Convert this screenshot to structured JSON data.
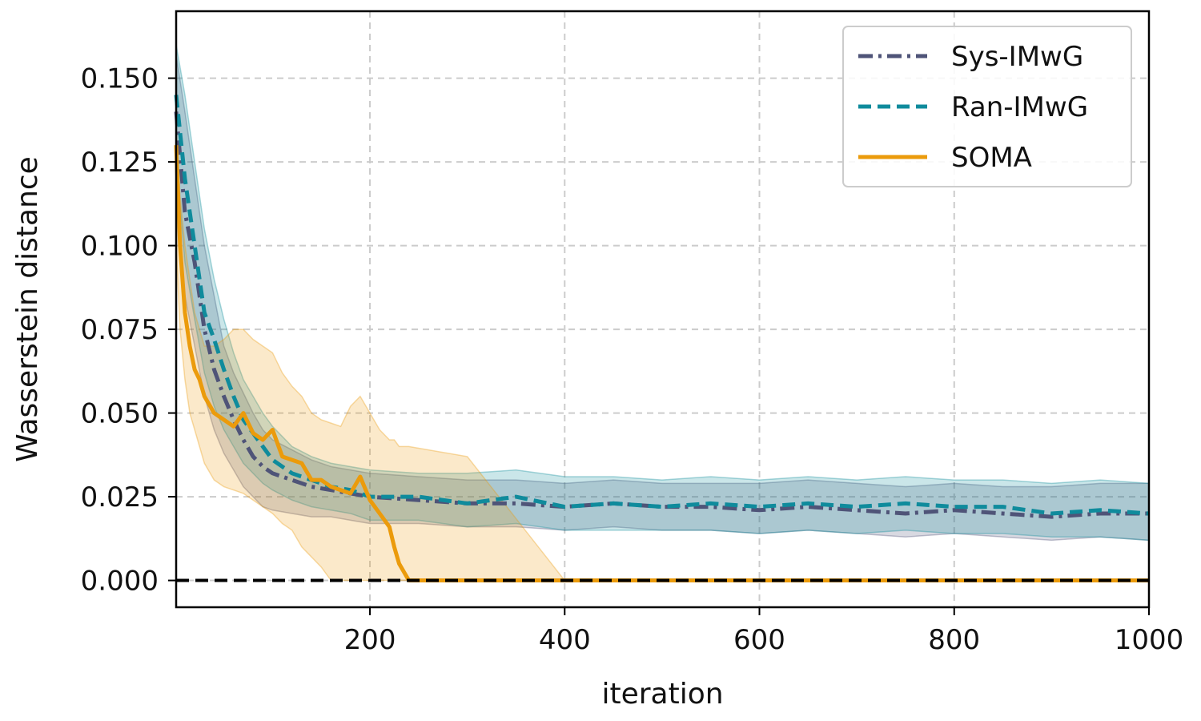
{
  "chart_data": {
    "type": "line",
    "title": "",
    "xlabel": "iteration",
    "ylabel": "Wasserstein distance",
    "xlim": [
      1,
      1000
    ],
    "ylim": [
      -0.008,
      0.17
    ],
    "xticks": [
      200,
      400,
      600,
      800,
      1000
    ],
    "xtick_labels": [
      "200",
      "400",
      "600",
      "800",
      "1000"
    ],
    "yticks": [
      0.0,
      0.025,
      0.05,
      0.075,
      0.1,
      0.125,
      0.15
    ],
    "ytick_labels": [
      "0.000",
      "0.025",
      "0.050",
      "0.075",
      "0.100",
      "0.125",
      "0.150"
    ],
    "grid": true,
    "legend_position": "top-right",
    "reference_line": {
      "y": 0.0,
      "color": "#000000",
      "style": "dashed"
    },
    "series": [
      {
        "name": "Sys-IMwG",
        "color": "#4f5478",
        "style": "dashdot",
        "x": [
          1,
          10,
          20,
          30,
          40,
          50,
          60,
          70,
          80,
          90,
          100,
          120,
          140,
          160,
          180,
          200,
          250,
          300,
          350,
          400,
          450,
          500,
          550,
          600,
          650,
          700,
          750,
          800,
          850,
          900,
          950,
          1000
        ],
        "mean": [
          0.14,
          0.11,
          0.095,
          0.075,
          0.063,
          0.055,
          0.048,
          0.042,
          0.037,
          0.034,
          0.032,
          0.03,
          0.028,
          0.027,
          0.026,
          0.025,
          0.024,
          0.023,
          0.023,
          0.022,
          0.023,
          0.022,
          0.022,
          0.021,
          0.022,
          0.021,
          0.02,
          0.021,
          0.02,
          0.019,
          0.02,
          0.02
        ],
        "upper": [
          0.157,
          0.14,
          0.12,
          0.1,
          0.085,
          0.07,
          0.062,
          0.056,
          0.05,
          0.045,
          0.042,
          0.039,
          0.036,
          0.034,
          0.033,
          0.032,
          0.031,
          0.03,
          0.03,
          0.029,
          0.03,
          0.029,
          0.029,
          0.029,
          0.03,
          0.029,
          0.028,
          0.029,
          0.028,
          0.028,
          0.029,
          0.029
        ],
        "lower": [
          0.12,
          0.085,
          0.07,
          0.055,
          0.045,
          0.038,
          0.033,
          0.028,
          0.025,
          0.022,
          0.021,
          0.02,
          0.019,
          0.019,
          0.018,
          0.017,
          0.017,
          0.016,
          0.016,
          0.015,
          0.016,
          0.015,
          0.015,
          0.014,
          0.015,
          0.014,
          0.013,
          0.014,
          0.013,
          0.012,
          0.013,
          0.012
        ]
      },
      {
        "name": "Ran-IMwG",
        "color": "#0f8b9c",
        "style": "dashed",
        "x": [
          1,
          10,
          20,
          30,
          40,
          50,
          60,
          70,
          80,
          90,
          100,
          120,
          140,
          160,
          180,
          200,
          250,
          300,
          350,
          400,
          450,
          500,
          550,
          600,
          650,
          700,
          750,
          800,
          850,
          900,
          950,
          1000
        ],
        "mean": [
          0.145,
          0.12,
          0.1,
          0.08,
          0.072,
          0.063,
          0.055,
          0.048,
          0.044,
          0.04,
          0.036,
          0.032,
          0.03,
          0.028,
          0.027,
          0.025,
          0.025,
          0.023,
          0.025,
          0.022,
          0.023,
          0.022,
          0.023,
          0.022,
          0.023,
          0.022,
          0.023,
          0.022,
          0.022,
          0.02,
          0.021,
          0.02
        ],
        "upper": [
          0.16,
          0.145,
          0.125,
          0.105,
          0.09,
          0.078,
          0.068,
          0.06,
          0.055,
          0.05,
          0.046,
          0.04,
          0.037,
          0.035,
          0.034,
          0.033,
          0.032,
          0.032,
          0.033,
          0.031,
          0.031,
          0.03,
          0.031,
          0.03,
          0.031,
          0.03,
          0.031,
          0.03,
          0.03,
          0.029,
          0.03,
          0.029
        ],
        "lower": [
          0.125,
          0.095,
          0.078,
          0.062,
          0.052,
          0.045,
          0.04,
          0.035,
          0.032,
          0.029,
          0.027,
          0.024,
          0.022,
          0.021,
          0.02,
          0.018,
          0.018,
          0.016,
          0.017,
          0.015,
          0.015,
          0.015,
          0.015,
          0.014,
          0.015,
          0.014,
          0.015,
          0.014,
          0.014,
          0.013,
          0.013,
          0.012
        ]
      },
      {
        "name": "SOMA",
        "color": "#eb9b0c",
        "style": "solid",
        "x": [
          1,
          5,
          10,
          15,
          20,
          25,
          30,
          40,
          50,
          60,
          70,
          80,
          90,
          100,
          110,
          120,
          130,
          140,
          150,
          160,
          170,
          180,
          190,
          200,
          210,
          220,
          225,
          230,
          240,
          300,
          400,
          500,
          600,
          700,
          800,
          900,
          1000
        ],
        "mean": [
          0.13,
          0.1,
          0.08,
          0.07,
          0.063,
          0.06,
          0.055,
          0.05,
          0.048,
          0.046,
          0.05,
          0.044,
          0.042,
          0.045,
          0.037,
          0.036,
          0.035,
          0.03,
          0.03,
          0.028,
          0.027,
          0.026,
          0.031,
          0.024,
          0.02,
          0.016,
          0.01,
          0.005,
          0.0,
          0.0,
          0.0,
          0.0,
          0.0,
          0.0,
          0.0,
          0.0,
          0.0
        ],
        "upper": [
          0.135,
          0.115,
          0.1,
          0.09,
          0.08,
          0.075,
          0.07,
          0.07,
          0.072,
          0.075,
          0.075,
          0.072,
          0.07,
          0.068,
          0.062,
          0.058,
          0.055,
          0.05,
          0.048,
          0.047,
          0.046,
          0.052,
          0.055,
          0.05,
          0.045,
          0.042,
          0.042,
          0.04,
          0.04,
          0.037,
          0.0,
          0.0,
          0.0,
          0.0,
          0.0,
          0.0,
          0.0
        ],
        "lower": [
          0.1,
          0.075,
          0.06,
          0.05,
          0.045,
          0.04,
          0.035,
          0.03,
          0.028,
          0.027,
          0.026,
          0.024,
          0.022,
          0.02,
          0.017,
          0.015,
          0.01,
          0.007,
          0.004,
          0.0,
          0.0,
          0.0,
          0.0,
          0.0,
          0.0,
          0.0,
          0.0,
          0.0,
          0.0,
          0.0,
          0.0,
          0.0,
          0.0,
          0.0,
          0.0,
          0.0,
          0.0
        ]
      }
    ]
  }
}
